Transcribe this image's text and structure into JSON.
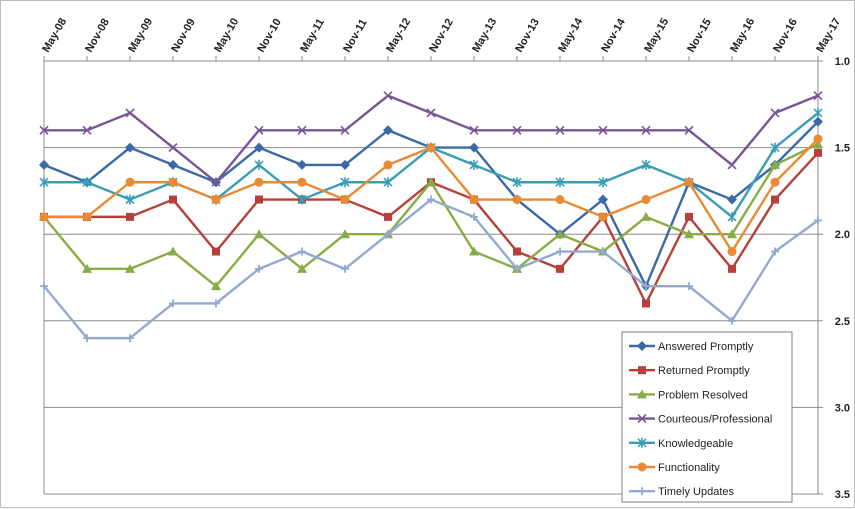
{
  "chart_data": {
    "type": "line",
    "title": "",
    "xlabel": "",
    "ylabel": "",
    "ylim": [
      1.0,
      3.5
    ],
    "y_reversed": true,
    "yticks": [
      "1.0",
      "1.5",
      "2.0",
      "2.5",
      "3.0",
      "3.5"
    ],
    "y_axis_position": "right",
    "x_tick_position": "top",
    "grid": true,
    "legend_position": "bottom-right",
    "categories": [
      "May-08",
      "Nov-08",
      "May-09",
      "Nov-09",
      "May-10",
      "Nov-10",
      "May-11",
      "Nov-11",
      "May-12",
      "Nov-12",
      "May-13",
      "Nov-13",
      "May-14",
      "Nov-14",
      "May-15",
      "Nov-15",
      "May-16",
      "Nov-16",
      "May-17"
    ],
    "series": [
      {
        "name": "Answered Promptly",
        "color": "#3a6aa5",
        "marker": "diamond",
        "values": [
          1.6,
          1.7,
          1.5,
          1.6,
          1.7,
          1.5,
          1.6,
          1.6,
          1.4,
          1.5,
          1.5,
          1.8,
          2.0,
          1.8,
          2.3,
          1.7,
          1.8,
          1.6,
          1.35
        ]
      },
      {
        "name": "Returned Promptly",
        "color": "#b7403b",
        "marker": "square",
        "values": [
          1.9,
          1.9,
          1.9,
          1.8,
          2.1,
          1.8,
          1.8,
          1.8,
          1.9,
          1.7,
          1.8,
          2.1,
          2.2,
          1.9,
          2.4,
          1.9,
          2.2,
          1.8,
          1.53
        ]
      },
      {
        "name": "Problem Resolved",
        "color": "#8aac47",
        "marker": "triangle",
        "values": [
          1.9,
          2.2,
          2.2,
          2.1,
          2.3,
          2.0,
          2.2,
          2.0,
          2.0,
          1.7,
          2.1,
          2.2,
          2.0,
          2.1,
          1.9,
          2.0,
          2.0,
          1.6,
          1.48
        ]
      },
      {
        "name": "Courteous/Professional",
        "color": "#7a5595",
        "marker": "x",
        "values": [
          1.4,
          1.4,
          1.3,
          1.5,
          1.7,
          1.4,
          1.4,
          1.4,
          1.2,
          1.3,
          1.4,
          1.4,
          1.4,
          1.4,
          1.4,
          1.4,
          1.6,
          1.3,
          1.2
        ]
      },
      {
        "name": "Knowledgeable",
        "color": "#3a9db7",
        "marker": "star",
        "values": [
          1.7,
          1.7,
          1.8,
          1.7,
          1.8,
          1.6,
          1.8,
          1.7,
          1.7,
          1.5,
          1.6,
          1.7,
          1.7,
          1.7,
          1.6,
          1.7,
          1.9,
          1.5,
          1.3
        ]
      },
      {
        "name": "Functionality",
        "color": "#e98a34",
        "marker": "circle",
        "values": [
          1.9,
          1.9,
          1.7,
          1.7,
          1.8,
          1.7,
          1.7,
          1.8,
          1.6,
          1.5,
          1.8,
          1.8,
          1.8,
          1.9,
          1.8,
          1.7,
          2.1,
          1.7,
          1.45
        ]
      },
      {
        "name": "Timely Updates",
        "color": "#94a9d1",
        "marker": "plus",
        "values": [
          2.3,
          2.6,
          2.6,
          2.4,
          2.4,
          2.2,
          2.1,
          2.2,
          2.0,
          1.8,
          1.9,
          2.2,
          2.1,
          2.1,
          2.3,
          2.3,
          2.5,
          2.1,
          1.92
        ]
      }
    ]
  }
}
